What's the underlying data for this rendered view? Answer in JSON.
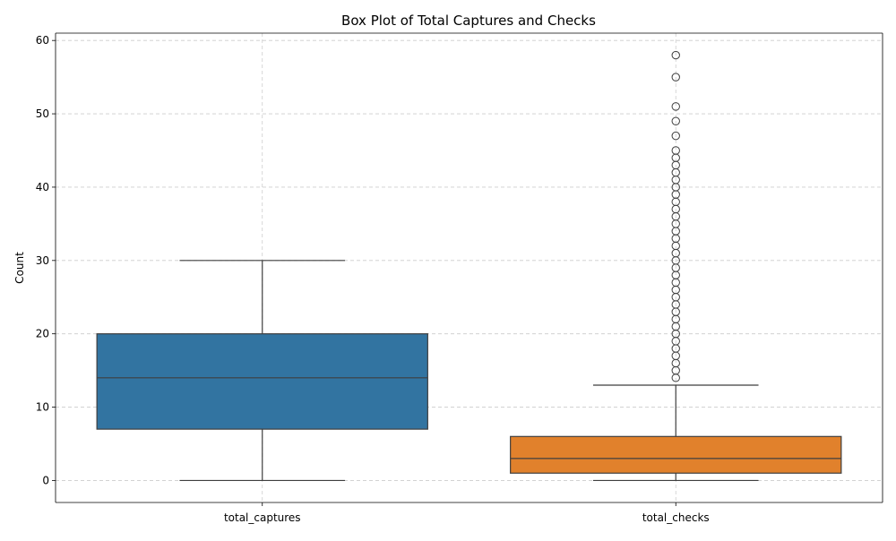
{
  "chart_data": {
    "type": "box",
    "title": "Box Plot of Total Captures and Checks",
    "xlabel": "",
    "ylabel": "Count",
    "ylim": [
      -3,
      61
    ],
    "y_ticks": [
      0,
      10,
      20,
      30,
      40,
      50,
      60
    ],
    "grid": true,
    "categories": [
      "total_captures",
      "total_checks"
    ],
    "boxes": [
      {
        "name": "total_captures",
        "color": "#3274a1",
        "whisker_low": 0,
        "q1": 7,
        "median": 14,
        "q3": 20,
        "whisker_high": 30,
        "outliers": []
      },
      {
        "name": "total_checks",
        "color": "#e1812c",
        "whisker_low": 0,
        "q1": 1,
        "median": 3,
        "q3": 6,
        "whisker_high": 13,
        "outliers": [
          14,
          15,
          16,
          17,
          18,
          19,
          20,
          21,
          22,
          23,
          24,
          25,
          26,
          27,
          28,
          29,
          30,
          31,
          32,
          33,
          34,
          35,
          36,
          37,
          38,
          39,
          40,
          41,
          42,
          43,
          44,
          45,
          47,
          49,
          51,
          55,
          58
        ]
      }
    ]
  }
}
